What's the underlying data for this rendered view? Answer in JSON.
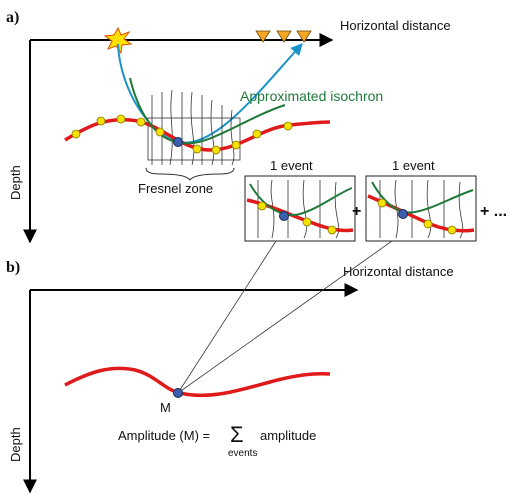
{
  "panel_a": {
    "label": "a)",
    "x_axis_label": "Horizontal distance",
    "y_axis_label": "Depth",
    "isochron_label": "Approximated isochron",
    "fresnel_label": "Fresnel zone",
    "events": [
      {
        "label": "1 event",
        "operator": "+"
      },
      {
        "label": "1 event",
        "operator": "+ ..."
      }
    ]
  },
  "panel_b": {
    "label": "b)",
    "x_axis_label": "Horizontal distance",
    "y_axis_label": "Depth",
    "point_label": "M",
    "formula": {
      "lhs": "Amplitude (M) =",
      "sum": "Σ",
      "sum_index": "events",
      "rhs": "amplitude"
    }
  }
}
